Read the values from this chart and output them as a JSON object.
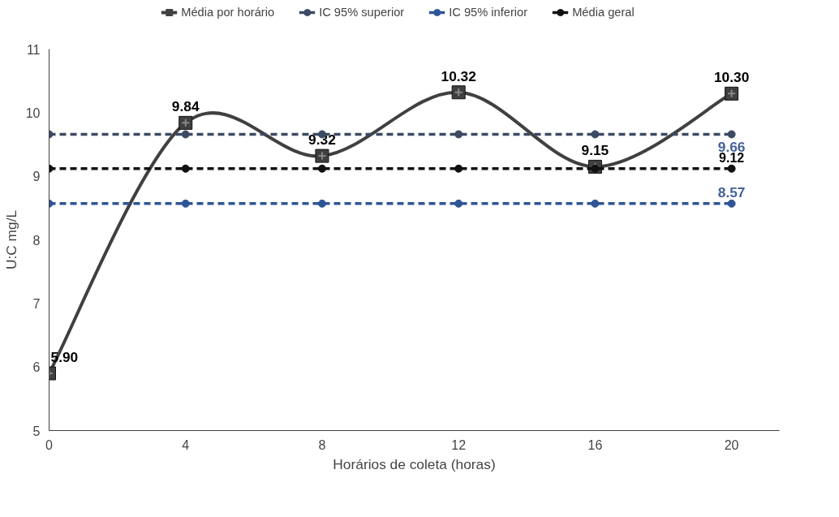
{
  "chart_data": {
    "type": "line",
    "xlabel": "Horários de coleta (horas)",
    "ylabel": "U:C mg/L",
    "x": [
      0,
      4,
      8,
      12,
      16,
      20
    ],
    "xlim": [
      0,
      21.4
    ],
    "xticks": [
      0,
      4,
      8,
      12,
      16,
      20
    ],
    "ylim": [
      5,
      11
    ],
    "yticks": [
      5,
      6,
      7,
      8,
      9,
      10,
      11
    ],
    "grid": false,
    "legend": "top",
    "series": [
      {
        "name": "Média por horário",
        "color": "#404040",
        "values": [
          5.9,
          9.84,
          9.32,
          10.32,
          9.15,
          10.3
        ],
        "marker": "square",
        "line_style": "solid",
        "value_labels": [
          "5.90",
          "9.84",
          "9.32",
          "10.32",
          "9.15",
          "10.30"
        ]
      },
      {
        "name": "IC 95% superior",
        "color": "#3c4a63",
        "values": [
          9.66,
          9.66,
          9.66,
          9.66,
          9.66,
          9.66
        ],
        "marker": "circle",
        "line_style": "dashed",
        "value_labels": [
          null,
          null,
          null,
          null,
          null,
          "9.66"
        ]
      },
      {
        "name": "IC 95% inferior",
        "color": "#2f5597",
        "values": [
          8.57,
          8.57,
          8.57,
          8.57,
          8.57,
          8.57
        ],
        "marker": "circle",
        "line_style": "dashed",
        "value_labels": [
          null,
          null,
          null,
          null,
          null,
          "8.57"
        ]
      },
      {
        "name": "Média geral",
        "color": "#111111",
        "values": [
          9.12,
          9.12,
          9.12,
          9.12,
          9.12,
          9.12
        ],
        "marker": "circle",
        "line_style": "dashed",
        "value_labels": [
          null,
          null,
          null,
          null,
          null,
          "9.12"
        ]
      }
    ]
  }
}
